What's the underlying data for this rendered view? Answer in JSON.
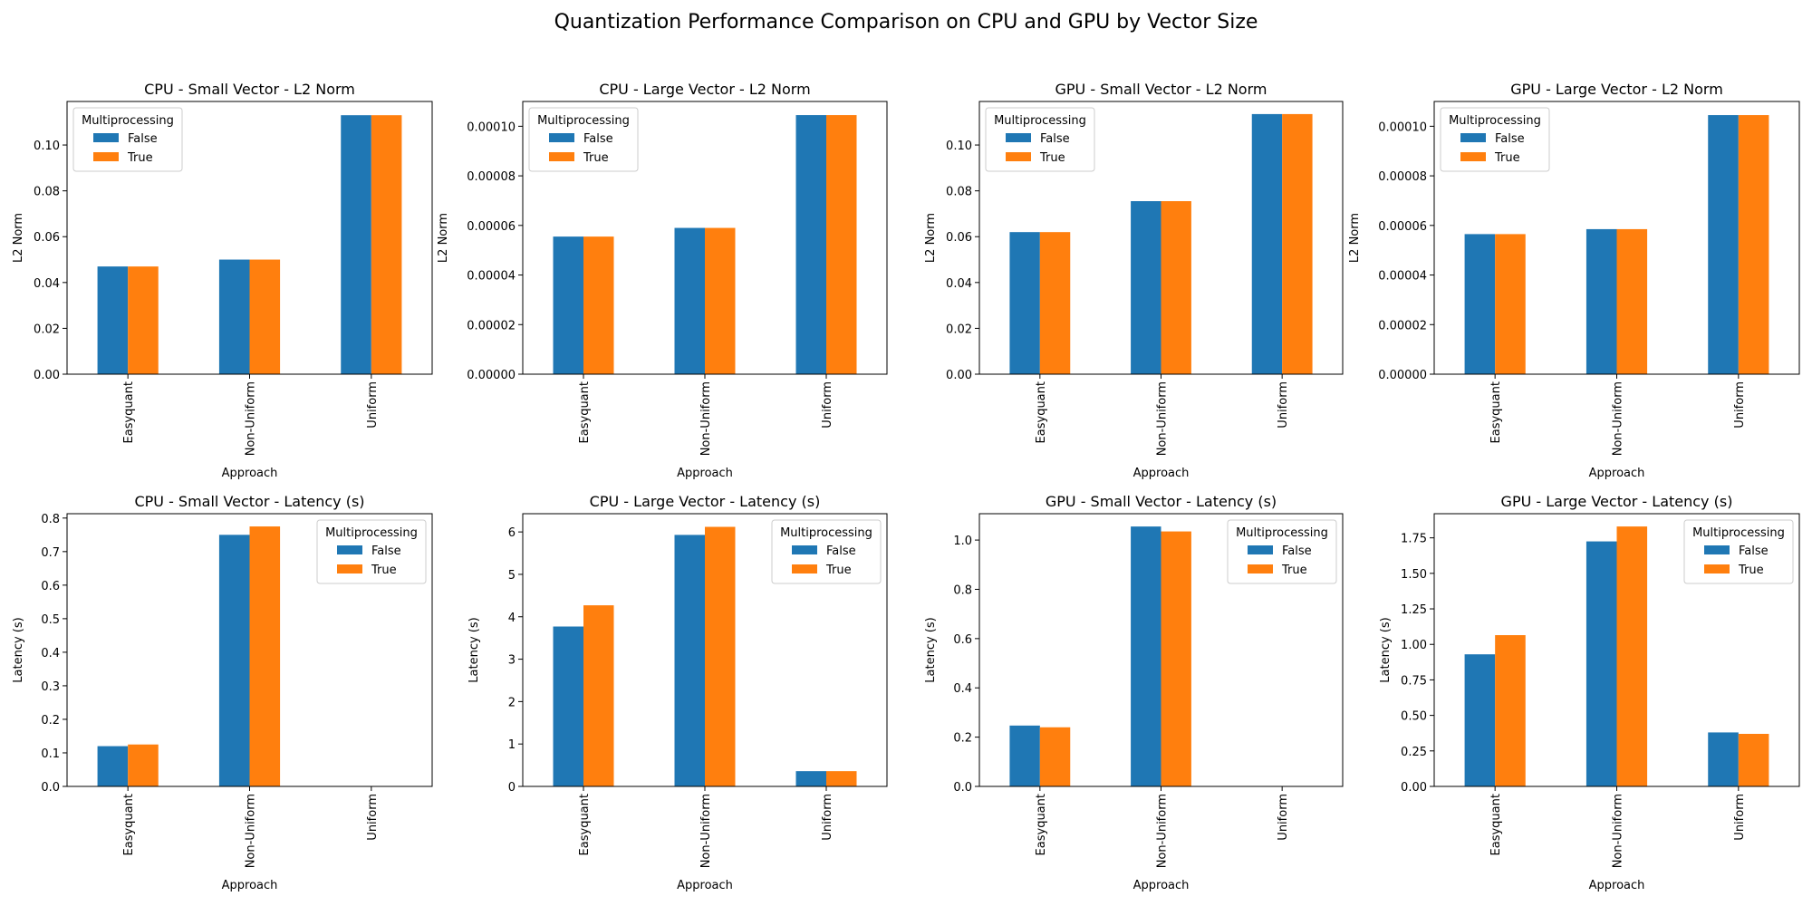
{
  "suptitle": "Quantization Performance Comparison on CPU and GPU by Vector Size",
  "colors": {
    "series_false": "#1f77b4",
    "series_true": "#ff7f0e"
  },
  "chart_data": [
    {
      "type": "bar",
      "title": "CPU - Small Vector - L2 Norm",
      "xlabel": "Approach",
      "ylabel": "L2 Norm",
      "categories": [
        "Easyquant",
        "Non-Uniform",
        "Uniform"
      ],
      "series": [
        {
          "name": "False",
          "values": [
            0.047,
            0.05,
            0.113
          ]
        },
        {
          "name": "True",
          "values": [
            0.047,
            0.05,
            0.113
          ]
        }
      ],
      "ylim": [
        0,
        0.119
      ],
      "yticks": [
        "0.00",
        "0.02",
        "0.04",
        "0.06",
        "0.08",
        "0.10"
      ],
      "legend": {
        "title": "Multiprocessing",
        "position": "upper left"
      },
      "grid": false
    },
    {
      "type": "bar",
      "title": "CPU - Large Vector - L2 Norm",
      "xlabel": "Approach",
      "ylabel": "L2 Norm",
      "categories": [
        "Easyquant",
        "Non-Uniform",
        "Uniform"
      ],
      "series": [
        {
          "name": "False",
          "values": [
            5.55e-05,
            5.9e-05,
            0.0001045
          ]
        },
        {
          "name": "True",
          "values": [
            5.55e-05,
            5.9e-05,
            0.0001045
          ]
        }
      ],
      "ylim": [
        0,
        0.00011
      ],
      "yticks": [
        "0.00000",
        "0.00002",
        "0.00004",
        "0.00006",
        "0.00008",
        "0.00010"
      ],
      "legend": {
        "title": "Multiprocessing",
        "position": "upper left"
      },
      "grid": false
    },
    {
      "type": "bar",
      "title": "GPU - Small Vector - L2 Norm",
      "xlabel": "Approach",
      "ylabel": "L2 Norm",
      "categories": [
        "Easyquant",
        "Non-Uniform",
        "Uniform"
      ],
      "series": [
        {
          "name": "False",
          "values": [
            0.062,
            0.0755,
            0.1135
          ]
        },
        {
          "name": "True",
          "values": [
            0.062,
            0.0755,
            0.1135
          ]
        }
      ],
      "ylim": [
        0,
        0.119
      ],
      "yticks": [
        "0.00",
        "0.02",
        "0.04",
        "0.06",
        "0.08",
        "0.10"
      ],
      "legend": {
        "title": "Multiprocessing",
        "position": "upper left"
      },
      "grid": false
    },
    {
      "type": "bar",
      "title": "GPU - Large Vector - L2 Norm",
      "xlabel": "Approach",
      "ylabel": "L2 Norm",
      "categories": [
        "Easyquant",
        "Non-Uniform",
        "Uniform"
      ],
      "series": [
        {
          "name": "False",
          "values": [
            5.65e-05,
            5.85e-05,
            0.0001045
          ]
        },
        {
          "name": "True",
          "values": [
            5.65e-05,
            5.85e-05,
            0.0001045
          ]
        }
      ],
      "ylim": [
        0,
        0.00011
      ],
      "yticks": [
        "0.00000",
        "0.00002",
        "0.00004",
        "0.00006",
        "0.00008",
        "0.00010"
      ],
      "legend": {
        "title": "Multiprocessing",
        "position": "upper left"
      },
      "grid": false
    },
    {
      "type": "bar",
      "title": "CPU - Small Vector - Latency (s)",
      "xlabel": "Approach",
      "ylabel": "Latency (s)",
      "categories": [
        "Easyquant",
        "Non-Uniform",
        "Uniform"
      ],
      "series": [
        {
          "name": "False",
          "values": [
            0.12,
            0.75,
            0.0
          ]
        },
        {
          "name": "True",
          "values": [
            0.125,
            0.775,
            0.0
          ]
        }
      ],
      "ylim": [
        0,
        0.813
      ],
      "yticks": [
        "0.0",
        "0.1",
        "0.2",
        "0.3",
        "0.4",
        "0.5",
        "0.6",
        "0.7",
        "0.8"
      ],
      "legend": {
        "title": "Multiprocessing",
        "position": "upper right"
      },
      "grid": false
    },
    {
      "type": "bar",
      "title": "CPU - Large Vector - Latency (s)",
      "xlabel": "Approach",
      "ylabel": "Latency (s)",
      "categories": [
        "Easyquant",
        "Non-Uniform",
        "Uniform"
      ],
      "series": [
        {
          "name": "False",
          "values": [
            3.77,
            5.93,
            0.36
          ]
        },
        {
          "name": "True",
          "values": [
            4.27,
            6.12,
            0.36
          ]
        }
      ],
      "ylim": [
        0,
        6.43
      ],
      "yticks": [
        "0",
        "1",
        "2",
        "3",
        "4",
        "5",
        "6"
      ],
      "legend": {
        "title": "Multiprocessing",
        "position": "upper right"
      },
      "grid": false
    },
    {
      "type": "bar",
      "title": "GPU - Small Vector - Latency (s)",
      "xlabel": "Approach",
      "ylabel": "Latency (s)",
      "categories": [
        "Easyquant",
        "Non-Uniform",
        "Uniform"
      ],
      "series": [
        {
          "name": "False",
          "values": [
            0.247,
            1.055,
            0.0
          ]
        },
        {
          "name": "True",
          "values": [
            0.24,
            1.035,
            0.0
          ]
        }
      ],
      "ylim": [
        0,
        1.107
      ],
      "yticks": [
        "0.0",
        "0.2",
        "0.4",
        "0.6",
        "0.8",
        "1.0"
      ],
      "legend": {
        "title": "Multiprocessing",
        "position": "upper right"
      },
      "grid": false
    },
    {
      "type": "bar",
      "title": "GPU - Large Vector - Latency (s)",
      "xlabel": "Approach",
      "ylabel": "Latency (s)",
      "categories": [
        "Easyquant",
        "Non-Uniform",
        "Uniform"
      ],
      "series": [
        {
          "name": "False",
          "values": [
            0.93,
            1.725,
            0.38
          ]
        },
        {
          "name": "True",
          "values": [
            1.065,
            1.83,
            0.37
          ]
        }
      ],
      "ylim": [
        0,
        1.92
      ],
      "yticks": [
        "0.00",
        "0.25",
        "0.50",
        "0.75",
        "1.00",
        "1.25",
        "1.50",
        "1.75"
      ],
      "legend": {
        "title": "Multiprocessing",
        "position": "upper right"
      },
      "grid": false
    }
  ]
}
